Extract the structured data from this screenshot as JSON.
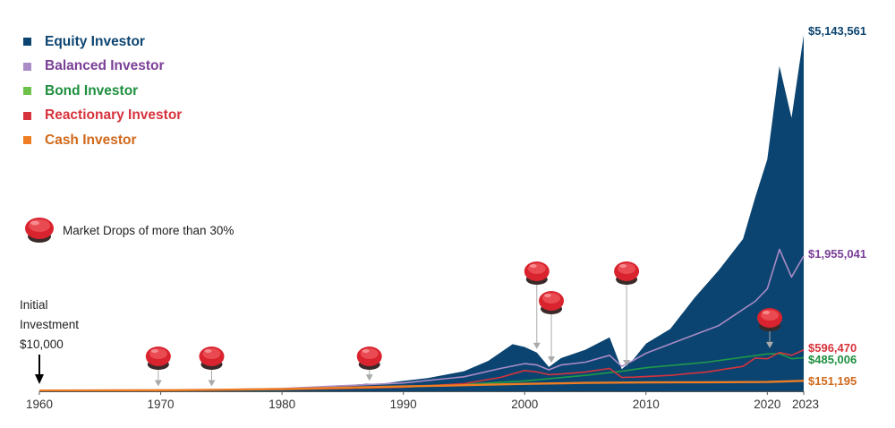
{
  "chart_data": {
    "type": "area",
    "x_ticks": [
      "1960",
      "1970",
      "1980",
      "1990",
      "2000",
      "2010",
      "2020",
      "2023"
    ],
    "xlim": [
      1960,
      2023
    ],
    "ylim": [
      0,
      5200000
    ],
    "series": [
      {
        "name": "Equity Investor",
        "color": "#0b4470",
        "style": "area",
        "end_label": "$5,143,561",
        "x": [
          1960,
          1962,
          1965,
          1968,
          1970,
          1973,
          1975,
          1978,
          1980,
          1982,
          1985,
          1987,
          1988,
          1990,
          1992,
          1995,
          1997,
          1998,
          1999,
          2000,
          2001,
          2002,
          2003,
          2005,
          2007,
          2008,
          2009,
          2010,
          2012,
          2014,
          2016,
          2018,
          2019,
          2020,
          2021,
          2022,
          2023
        ],
        "y": [
          10000,
          12000,
          17000,
          22000,
          21000,
          26000,
          23000,
          32000,
          40000,
          50000,
          80000,
          110000,
          105000,
          150000,
          190000,
          290000,
          440000,
          560000,
          680000,
          640000,
          560000,
          350000,
          480000,
          600000,
          780000,
          320000,
          470000,
          690000,
          900000,
          1350000,
          1750000,
          2200000,
          2800000,
          3350000,
          4700000,
          3950000,
          5143561
        ]
      },
      {
        "name": "Balanced Investor",
        "color": "#a98bc6",
        "style": "line",
        "end_label": "$1,955,041",
        "x": [
          1960,
          1965,
          1970,
          1975,
          1980,
          1985,
          1990,
          1995,
          1998,
          2000,
          2001,
          2002,
          2003,
          2005,
          2007,
          2008,
          2009,
          2010,
          2013,
          2016,
          2019,
          2020,
          2021,
          2022,
          2023
        ],
        "y": [
          10000,
          15000,
          20000,
          26000,
          40000,
          80000,
          120000,
          210000,
          330000,
          400000,
          380000,
          310000,
          380000,
          420000,
          520000,
          360000,
          450000,
          550000,
          750000,
          950000,
          1300000,
          1480000,
          2050000,
          1650000,
          1955041
        ]
      },
      {
        "name": "Bond Investor",
        "color": "#1e9b49",
        "style": "line",
        "end_label": "$485,006",
        "x": [
          1960,
          1970,
          1980,
          1985,
          1990,
          1995,
          2000,
          2005,
          2008,
          2010,
          2015,
          2020,
          2021,
          2022,
          2023
        ],
        "y": [
          10000,
          14000,
          22000,
          38000,
          60000,
          100000,
          150000,
          230000,
          290000,
          340000,
          420000,
          540000,
          545000,
          470000,
          485006
        ]
      },
      {
        "name": "Reactionary Investor",
        "color": "#d7333d",
        "style": "line",
        "end_label": "$596,470",
        "x": [
          1960,
          1965,
          1970,
          1975,
          1980,
          1985,
          1990,
          1995,
          1998,
          2000,
          2001,
          2002,
          2003,
          2005,
          2007,
          2008,
          2009,
          2012,
          2015,
          2018,
          2019,
          2020,
          2021,
          2022,
          2023
        ],
        "y": [
          10000,
          13000,
          16000,
          19000,
          25000,
          40000,
          60000,
          110000,
          200000,
          300000,
          280000,
          240000,
          250000,
          280000,
          330000,
          200000,
          205000,
          230000,
          280000,
          360000,
          480000,
          470000,
          560000,
          520000,
          596470
        ]
      },
      {
        "name": "Cash Investor",
        "color": "#ee7d23",
        "style": "line",
        "end_label": "$151,195",
        "x": [
          1960,
          1970,
          1975,
          1980,
          1985,
          1990,
          1995,
          2000,
          2005,
          2010,
          2015,
          2020,
          2023
        ],
        "y": [
          10000,
          16000,
          22000,
          34000,
          52000,
          70000,
          88000,
          108000,
          122000,
          128000,
          130000,
          135000,
          151195
        ]
      }
    ],
    "market_drops": [
      {
        "x": 1969.8,
        "y": 20000
      },
      {
        "x": 1974.2,
        "y": 20000
      },
      {
        "x": 1987.2,
        "y": 100000
      },
      {
        "x": 2001.0,
        "y": 560000
      },
      {
        "x": 2002.2,
        "y": 360000
      },
      {
        "x": 2008.4,
        "y": 310000
      },
      {
        "x": 2020.2,
        "y": 570000
      }
    ],
    "drops_legend_label": "Market Drops of more than 30%",
    "annotation": {
      "x": 1960,
      "lines": [
        "Initial",
        "Investment",
        "$10,000"
      ]
    },
    "grid": false,
    "legend": "top-left"
  }
}
